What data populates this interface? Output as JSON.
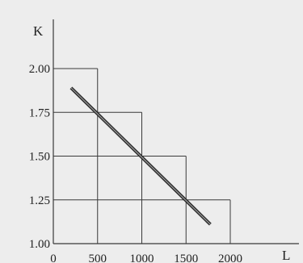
{
  "chart_data": {
    "type": "line",
    "xlabel": "L",
    "ylabel": "K",
    "xlim": [
      0,
      2000
    ],
    "ylim": [
      1.0,
      2.0
    ],
    "x_ticks": [
      "0",
      "500",
      "1000",
      "1500",
      "2000"
    ],
    "y_ticks": [
      "1.00",
      "1.25",
      "1.50",
      "1.75",
      "2.00"
    ],
    "series": [
      {
        "points": [
          {
            "x": 200,
            "y": 1.89
          },
          {
            "x": 1775,
            "y": 1.11
          }
        ]
      }
    ],
    "guide_boxes": [
      {
        "x": 500,
        "y": 2.0
      },
      {
        "x": 1000,
        "y": 1.75
      },
      {
        "x": 1500,
        "y": 1.5
      },
      {
        "x": 2000,
        "y": 1.25
      }
    ],
    "colors": {
      "background": "#ededed",
      "axis": "#3a3a3a",
      "guide": "#3a3a3a",
      "line_outer": "#2a2a2a",
      "line_inner": "#9a9a9a"
    }
  }
}
